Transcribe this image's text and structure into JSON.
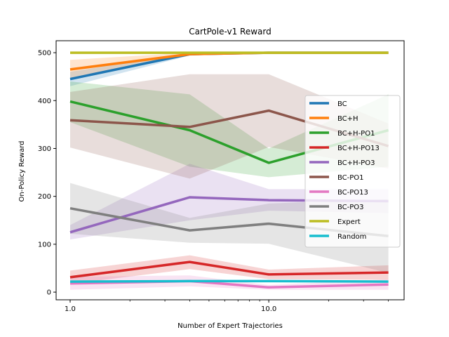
{
  "chart_data": {
    "type": "line",
    "title": "CartPole-v1 Reward",
    "xlabel": "Number of Expert Trajectories",
    "ylabel": "On-Policy Reward",
    "xscale": "log",
    "x": [
      1,
      4,
      10,
      40
    ],
    "xlim": [
      0.85,
      48
    ],
    "ylim": [
      -16,
      525
    ],
    "xticks": [
      {
        "value": 1,
        "label": "1.0"
      },
      {
        "value": 10,
        "label": "10.0"
      }
    ],
    "yticks": [
      0,
      100,
      200,
      300,
      400,
      500
    ],
    "grid": false,
    "legend_position": "center-right",
    "series": [
      {
        "name": "BC",
        "color": "#1f77b4",
        "values": [
          445,
          497,
          500,
          500
        ],
        "lower": [
          430,
          494,
          500,
          500
        ],
        "upper": [
          460,
          500,
          500,
          500
        ]
      },
      {
        "name": "BC+H",
        "color": "#ff7f0e",
        "values": [
          465,
          497,
          500,
          500
        ],
        "lower": [
          445,
          494,
          500,
          500
        ],
        "upper": [
          485,
          500,
          500,
          500
        ]
      },
      {
        "name": "BC+H-PO1",
        "color": "#2ca02c",
        "values": [
          398,
          338,
          270,
          338
        ],
        "lower": [
          355,
          262,
          240,
          262
        ],
        "upper": [
          440,
          413,
          300,
          413
        ]
      },
      {
        "name": "BC+H-PO13",
        "color": "#d62728",
        "values": [
          31,
          63,
          37,
          41
        ],
        "lower": [
          17,
          48,
          27,
          26
        ],
        "upper": [
          45,
          77,
          47,
          56
        ]
      },
      {
        "name": "BC+H-PO3",
        "color": "#9467bd",
        "values": [
          125,
          198,
          192,
          190
        ],
        "lower": [
          110,
          150,
          170,
          165
        ],
        "upper": [
          140,
          268,
          215,
          215
        ]
      },
      {
        "name": "BC-PO1",
        "color": "#8c564b",
        "values": [
          359,
          345,
          379,
          305
        ],
        "lower": [
          302,
          237,
          303,
          258
        ],
        "upper": [
          418,
          455,
          455,
          352
        ]
      },
      {
        "name": "BC-PO13",
        "color": "#e377c2",
        "values": [
          18,
          23,
          10,
          16
        ],
        "lower": [
          5,
          12,
          5,
          5
        ],
        "upper": [
          32,
          35,
          15,
          27
        ]
      },
      {
        "name": "BC-PO3",
        "color": "#7f7f7f",
        "values": [
          175,
          129,
          143,
          117
        ],
        "lower": [
          122,
          103,
          101,
          40
        ],
        "upper": [
          228,
          155,
          185,
          194
        ]
      },
      {
        "name": "Expert",
        "color": "#bcbd22",
        "values": [
          500,
          500,
          500,
          500
        ],
        "lower": [
          500,
          500,
          500,
          500
        ],
        "upper": [
          500,
          500,
          500,
          500
        ]
      },
      {
        "name": "Random",
        "color": "#17becf",
        "values": [
          22,
          23,
          23,
          22
        ],
        "lower": [
          20,
          21,
          21,
          20
        ],
        "upper": [
          24,
          25,
          25,
          24
        ]
      }
    ]
  }
}
